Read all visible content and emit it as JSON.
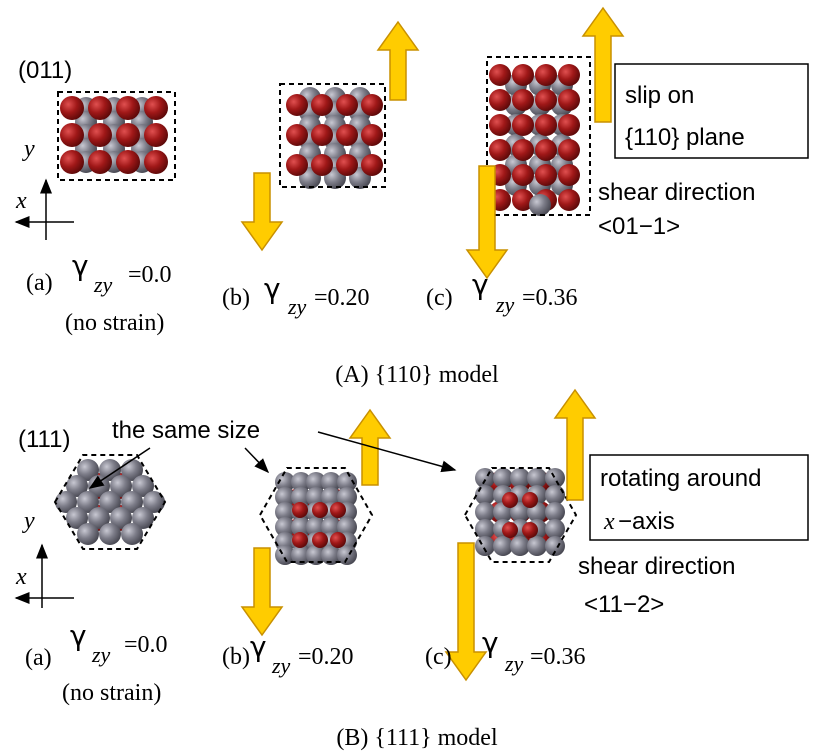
{
  "panel_A": {
    "plane": "(011)",
    "axis_y": "y",
    "axis_x": "x",
    "subfigures": [
      {
        "label": "(a)",
        "symbol": "γ",
        "subscript": "zy",
        "value": "=0.0",
        "note": "(no strain)"
      },
      {
        "label": "(b)",
        "symbol": "γ",
        "subscript": "zy",
        "value": "=0.20"
      },
      {
        "label": "(c)",
        "symbol": "γ",
        "subscript": "zy",
        "value": "=0.36"
      }
    ],
    "box": [
      "slip on",
      "{110} plane"
    ],
    "shear": [
      "shear direction",
      "<01−1>"
    ],
    "caption": "(A) {110} model"
  },
  "panel_B": {
    "plane": "(111)",
    "axis_y": "y",
    "axis_x": "x",
    "callout": "the same size",
    "subfigures": [
      {
        "label": "(a)",
        "symbol": "γ",
        "subscript": "zy",
        "value": "=0.0",
        "note": "(no strain)"
      },
      {
        "label": "(b)",
        "symbol": "γ",
        "subscript": "zy",
        "value": "=0.20"
      },
      {
        "label": "(c)",
        "symbol": "γ",
        "subscript": "zy",
        "value": "=0.36"
      }
    ],
    "box": [
      "rotating around",
      "x",
      "−axis"
    ],
    "shear": [
      "shear direction",
      "<11−2>"
    ],
    "caption": "(B) {111} model"
  }
}
